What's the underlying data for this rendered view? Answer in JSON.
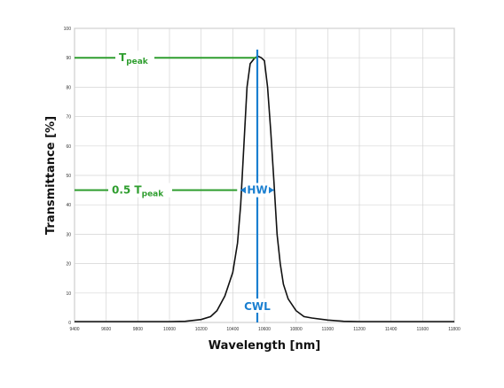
{
  "chart_data": {
    "type": "line",
    "title": "",
    "xlabel": "Wavelength [nm]",
    "ylabel": "Transmittance [%]",
    "xlim": [
      9400,
      11800
    ],
    "ylim": [
      0,
      100
    ],
    "xticks": [
      9400,
      9600,
      9800,
      10000,
      10200,
      10400,
      10600,
      10800,
      11000,
      11200,
      11400,
      11600,
      11800
    ],
    "yticks": [
      0,
      10,
      20,
      30,
      40,
      50,
      60,
      70,
      80,
      90,
      100
    ],
    "grid": true,
    "series": [
      {
        "color": "#111111",
        "points": [
          [
            9400,
            0.3
          ],
          [
            9600,
            0.3
          ],
          [
            9800,
            0.3
          ],
          [
            10000,
            0.3
          ],
          [
            10100,
            0.4
          ],
          [
            10200,
            1
          ],
          [
            10260,
            2
          ],
          [
            10300,
            4
          ],
          [
            10350,
            9
          ],
          [
            10400,
            17
          ],
          [
            10430,
            27
          ],
          [
            10450,
            40
          ],
          [
            10470,
            60
          ],
          [
            10490,
            80
          ],
          [
            10510,
            88
          ],
          [
            10540,
            90
          ],
          [
            10560,
            90.5
          ],
          [
            10580,
            90
          ],
          [
            10600,
            89
          ],
          [
            10620,
            80
          ],
          [
            10640,
            65
          ],
          [
            10660,
            48
          ],
          [
            10680,
            30
          ],
          [
            10700,
            20
          ],
          [
            10720,
            13
          ],
          [
            10750,
            8
          ],
          [
            10800,
            4
          ],
          [
            10850,
            2
          ],
          [
            10900,
            1.5
          ],
          [
            11000,
            0.8
          ],
          [
            11100,
            0.4
          ],
          [
            11200,
            0.3
          ],
          [
            11400,
            0.3
          ],
          [
            11600,
            0.3
          ],
          [
            11800,
            0.3
          ]
        ]
      }
    ],
    "annotations": {
      "tpeak": {
        "base": "T",
        "sub": "peak",
        "y": 90,
        "color": "#2f9e2f"
      },
      "half": {
        "base": "0.5 T",
        "sub": "peak",
        "y": 45,
        "color": "#2f9e2f"
      },
      "hw": {
        "label": "HW",
        "x_left": 10450,
        "x_right": 10660,
        "y": 45,
        "color": "#1a7fd0"
      },
      "cwl": {
        "label": "CWL",
        "x": 10555,
        "color": "#1a7fd0"
      }
    }
  }
}
